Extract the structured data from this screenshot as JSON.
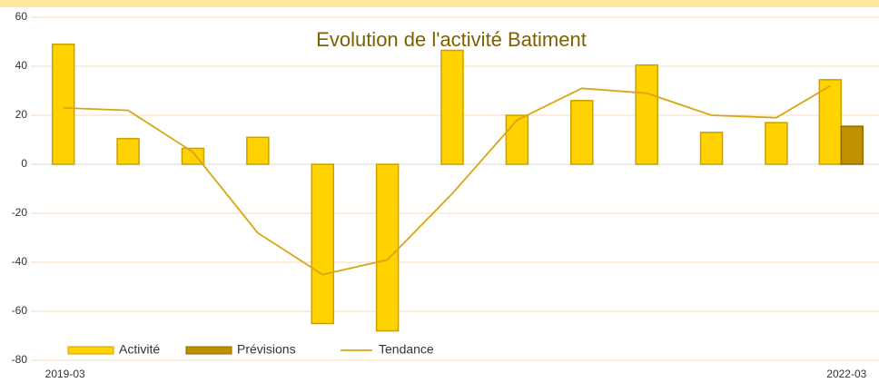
{
  "chart_data": {
    "type": "bar",
    "title": "Evolution de l'activité Batiment",
    "categories": [
      "2019-03",
      null,
      null,
      null,
      null,
      null,
      null,
      null,
      null,
      null,
      null,
      null,
      "2022-03"
    ],
    "series": [
      {
        "name": "Activité",
        "type": "bar",
        "color": "#ffd200",
        "values": [
          49,
          10.5,
          6.5,
          11,
          -65,
          -68,
          46.5,
          20,
          26,
          40.5,
          13,
          17,
          34.5
        ]
      },
      {
        "name": "Prévisions",
        "type": "bar",
        "color": "#bf9000",
        "values": [
          null,
          null,
          null,
          null,
          null,
          null,
          null,
          null,
          null,
          null,
          null,
          null,
          15.5
        ]
      },
      {
        "name": "Tendance",
        "type": "line",
        "color": "#d9a514",
        "values": [
          23,
          22,
          5,
          -28,
          -45,
          -39,
          -12,
          18,
          31,
          29,
          20,
          19,
          32
        ]
      }
    ],
    "ylim": [
      -80,
      60
    ],
    "yticks": [
      -80,
      -60,
      -40,
      -20,
      0,
      20,
      40,
      60
    ],
    "grid": true,
    "legend": "bottom-left"
  }
}
